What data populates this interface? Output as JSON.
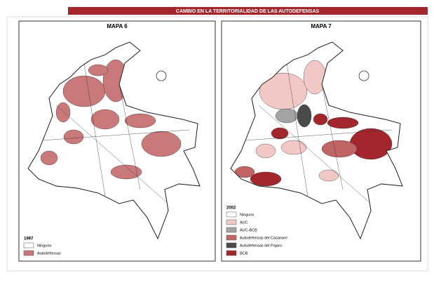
{
  "header": {
    "title": "CAMBIO EN LA TERRITORIALIDAD DE LAS AUTODEFENSAS"
  },
  "maps": [
    {
      "title": "MAPA 6",
      "legend": {
        "title": "1997",
        "items": [
          {
            "label": "Ninguno",
            "color": "#ffffff"
          },
          {
            "label": "Autodefensas",
            "color": "#c9797a"
          }
        ]
      }
    },
    {
      "title": "MAPA 7",
      "legend": {
        "title": "2002",
        "items": [
          {
            "label": "Ninguno",
            "color": "#ffffff"
          },
          {
            "label": "AUC",
            "color": "#f2c8c6"
          },
          {
            "label": "AUC-BCB",
            "color": "#a3a3a3"
          },
          {
            "label": "Autodefensas del Casanare",
            "color": "#c06465"
          },
          {
            "label": "Autodefensas del Pajaro",
            "color": "#4a4a4a"
          },
          {
            "label": "BCB",
            "color": "#a3262d"
          }
        ]
      }
    }
  ]
}
